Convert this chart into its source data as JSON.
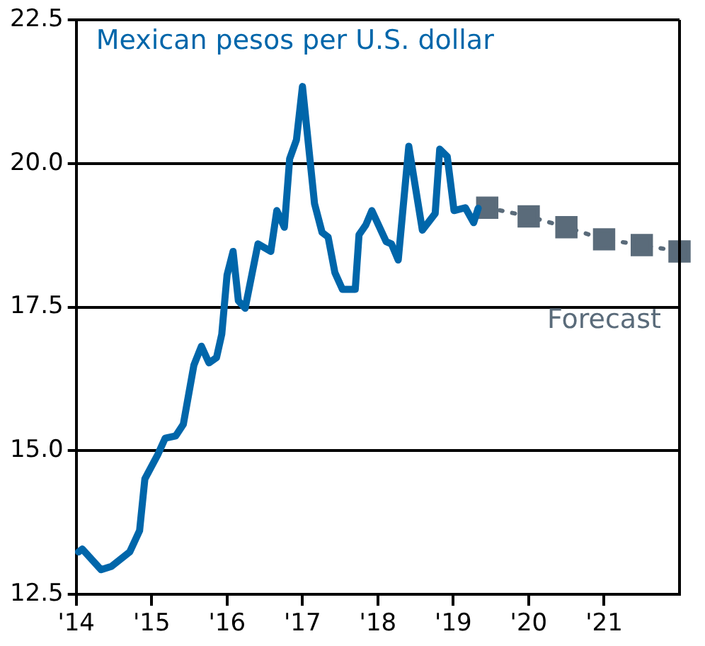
{
  "chart_data": {
    "type": "line",
    "x": [
      2014.03,
      2014.08,
      2014.33,
      2014.47,
      2014.71,
      2014.84,
      2014.91,
      2015.08,
      2015.18,
      2015.32,
      2015.42,
      2015.56,
      2015.66,
      2015.76,
      2015.86,
      2015.93,
      2016.0,
      2016.08,
      2016.15,
      2016.24,
      2016.41,
      2016.58,
      2016.66,
      2016.76,
      2016.83,
      2016.92,
      2017.0,
      2017.16,
      2017.26,
      2017.34,
      2017.43,
      2017.53,
      2017.7,
      2017.75,
      2017.84,
      2017.92,
      2018.11,
      2018.18,
      2018.27,
      2018.41,
      2018.59,
      2018.76,
      2018.82,
      2018.92,
      2019.01,
      2019.16,
      2019.27,
      2019.33
    ],
    "series": [
      {
        "name": "Mexican pesos per U.S. dollar",
        "color": "#0066aa",
        "values": [
          13.24,
          13.29,
          12.93,
          12.99,
          13.24,
          13.61,
          14.51,
          14.93,
          15.22,
          15.26,
          15.46,
          16.49,
          16.82,
          16.53,
          16.62,
          17.03,
          18.06,
          18.47,
          17.61,
          17.48,
          18.6,
          18.47,
          19.18,
          18.89,
          20.08,
          20.41,
          21.34,
          19.3,
          18.8,
          18.72,
          18.1,
          17.81,
          17.81,
          18.76,
          18.93,
          19.18,
          18.64,
          18.6,
          18.32,
          20.3,
          18.84,
          19.13,
          20.25,
          20.12,
          19.18,
          19.23,
          18.97,
          19.22
        ]
      },
      {
        "name": "Forecast",
        "color": "#5a6b7a",
        "x": [
          2019.45,
          2020.0,
          2020.5,
          2021.0,
          2021.5,
          2022.0
        ],
        "values": [
          19.23,
          19.08,
          18.89,
          18.68,
          18.58,
          18.47
        ],
        "marker": "square",
        "line_style": "dotted"
      }
    ],
    "xlim": [
      2014,
      2022
    ],
    "xticks": [
      {
        "value": 2014,
        "label": "'14"
      },
      {
        "value": 2015,
        "label": "'15"
      },
      {
        "value": 2016,
        "label": "'16"
      },
      {
        "value": 2017,
        "label": "'17"
      },
      {
        "value": 2018,
        "label": "'18"
      },
      {
        "value": 2019,
        "label": "'19"
      },
      {
        "value": 2020,
        "label": "'20"
      },
      {
        "value": 2021,
        "label": "'21"
      }
    ],
    "ylim": [
      12.5,
      22.5
    ],
    "yticks": [
      12.5,
      {
        "value": 15,
        "label": "15.0"
      },
      17.5,
      {
        "value": 20,
        "label": "20.0"
      },
      22.5
    ],
    "grid": "y",
    "legend": false,
    "marker": "none",
    "line_style": "solid"
  }
}
